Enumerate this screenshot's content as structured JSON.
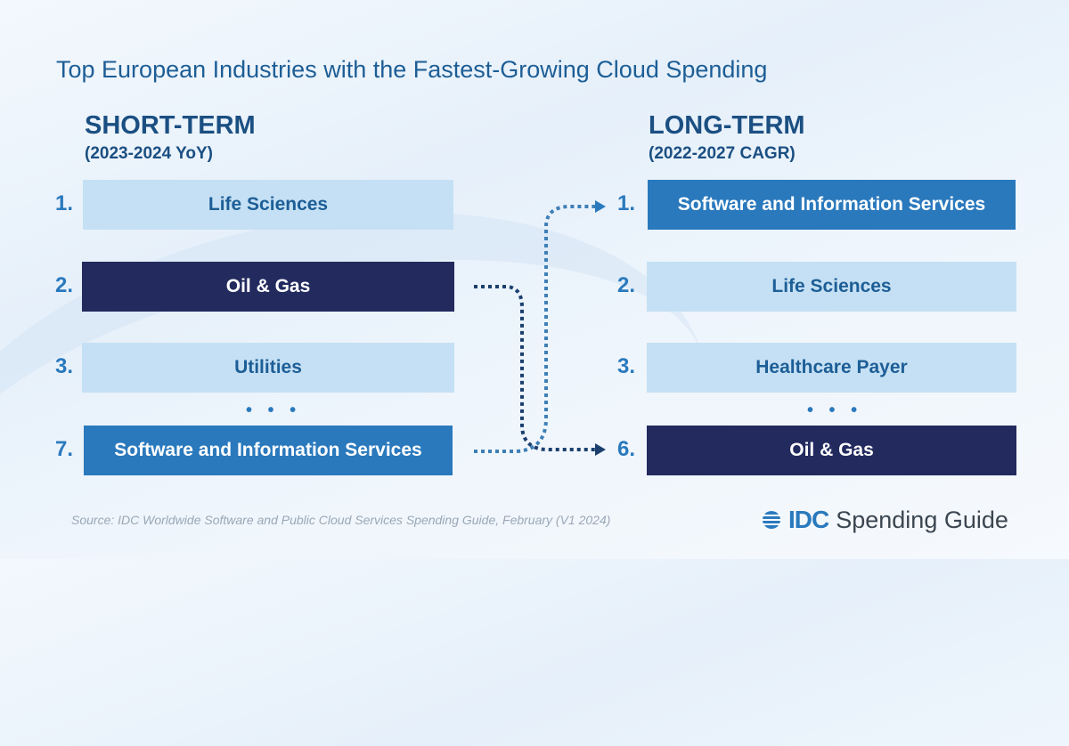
{
  "title": "Top European Industries with the Fastest-Growing Cloud Spending",
  "short_term": {
    "heading": "SHORT-TERM",
    "period": "(2023-2024 YoY)",
    "items": [
      {
        "rank": "1.",
        "label": "Life Sciences",
        "style": "light"
      },
      {
        "rank": "2.",
        "label": "Oil & Gas",
        "style": "dark"
      },
      {
        "rank": "3.",
        "label": "Utilities",
        "style": "light"
      },
      {
        "rank": "7.",
        "label": "Software and Information Services",
        "style": "blue"
      }
    ]
  },
  "long_term": {
    "heading": "LONG-TERM",
    "period": "(2022-2027 CAGR)",
    "items": [
      {
        "rank": "1.",
        "label": "Software and Information Services",
        "style": "blue"
      },
      {
        "rank": "2.",
        "label": "Life Sciences",
        "style": "light"
      },
      {
        "rank": "3.",
        "label": "Healthcare Payer",
        "style": "light"
      },
      {
        "rank": "6.",
        "label": "Oil & Gas",
        "style": "dark"
      }
    ]
  },
  "ellipsis": "• • •",
  "source": "Source: IDC Worldwide Software and Public Cloud Services Spending Guide, February (V1 2024)",
  "logo": {
    "brand": "IDC",
    "product": "Spending Guide"
  },
  "colors": {
    "light": "#c5e0f4",
    "dark": "#222a5e",
    "blue": "#2a79bd",
    "text": "#1d5e96"
  }
}
